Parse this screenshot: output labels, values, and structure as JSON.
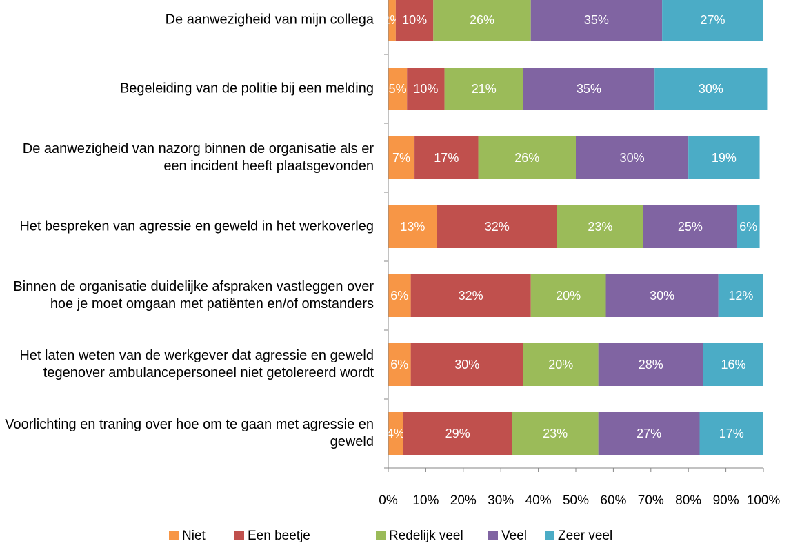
{
  "chart_data": {
    "type": "stacked-bar-horizontal",
    "categories": [
      "De aanwezigheid van mijn collega",
      "Begeleiding van de politie bij een melding",
      "De aanwezigheid van nazorg binnen de organisatie als er een incident heeft plaatsgevonden",
      "Het bespreken van agressie en geweld in het werkoverleg",
      "Binnen de organisatie duidelijke afspraken vastleggen over hoe je moet omgaan met patiënten en/of omstanders",
      "Het laten weten van de werkgever dat agressie en geweld tegenover ambulancepersoneel niet getolereerd wordt",
      "Voorlichting en traning over hoe om te gaan met agressie en geweld"
    ],
    "series": [
      {
        "name": "Niet",
        "color": "#f79646",
        "values": [
          2,
          5,
          7,
          13,
          6,
          6,
          4
        ],
        "value_labels": [
          "2%",
          "5%",
          "7%",
          "13%",
          "6%",
          "6%",
          "4%"
        ]
      },
      {
        "name": "Een beetje",
        "color": "#c0504d",
        "values": [
          10,
          10,
          17,
          32,
          32,
          30,
          29
        ],
        "value_labels": [
          "10%",
          "10%",
          "17%",
          "32%",
          "32%",
          "30%",
          "29%"
        ]
      },
      {
        "name": "Redelijk veel",
        "color": "#9bbb59",
        "values": [
          26,
          21,
          26,
          23,
          20,
          20,
          23
        ],
        "value_labels": [
          "26%",
          "21%",
          "26%",
          "23%",
          "20%",
          "20%",
          "23%"
        ]
      },
      {
        "name": "Veel",
        "color": "#8064a2",
        "values": [
          35,
          35,
          30,
          25,
          30,
          28,
          27
        ],
        "value_labels": [
          "35%",
          "35%",
          "30%",
          "25%",
          "30%",
          "28%",
          "27%"
        ]
      },
      {
        "name": "Zeer veel",
        "color": "#4bacc6",
        "values": [
          27,
          30,
          19,
          6,
          12,
          16,
          17
        ],
        "value_labels": [
          "27%",
          "30%",
          "19%",
          "6%",
          "12%",
          "16%",
          "17%"
        ]
      }
    ],
    "xlim": [
      0,
      100
    ],
    "xticks": [
      {
        "value": 0,
        "label": "0%"
      },
      {
        "value": 10,
        "label": "10%"
      },
      {
        "value": 20,
        "label": "20%"
      },
      {
        "value": 30,
        "label": "30%"
      },
      {
        "value": 40,
        "label": "40%"
      },
      {
        "value": 50,
        "label": "50%"
      },
      {
        "value": 60,
        "label": "60%"
      },
      {
        "value": 70,
        "label": "70%"
      },
      {
        "value": 80,
        "label": "80%"
      },
      {
        "value": 90,
        "label": "90%"
      },
      {
        "value": 100,
        "label": "100%"
      }
    ],
    "legend": "bottom"
  }
}
